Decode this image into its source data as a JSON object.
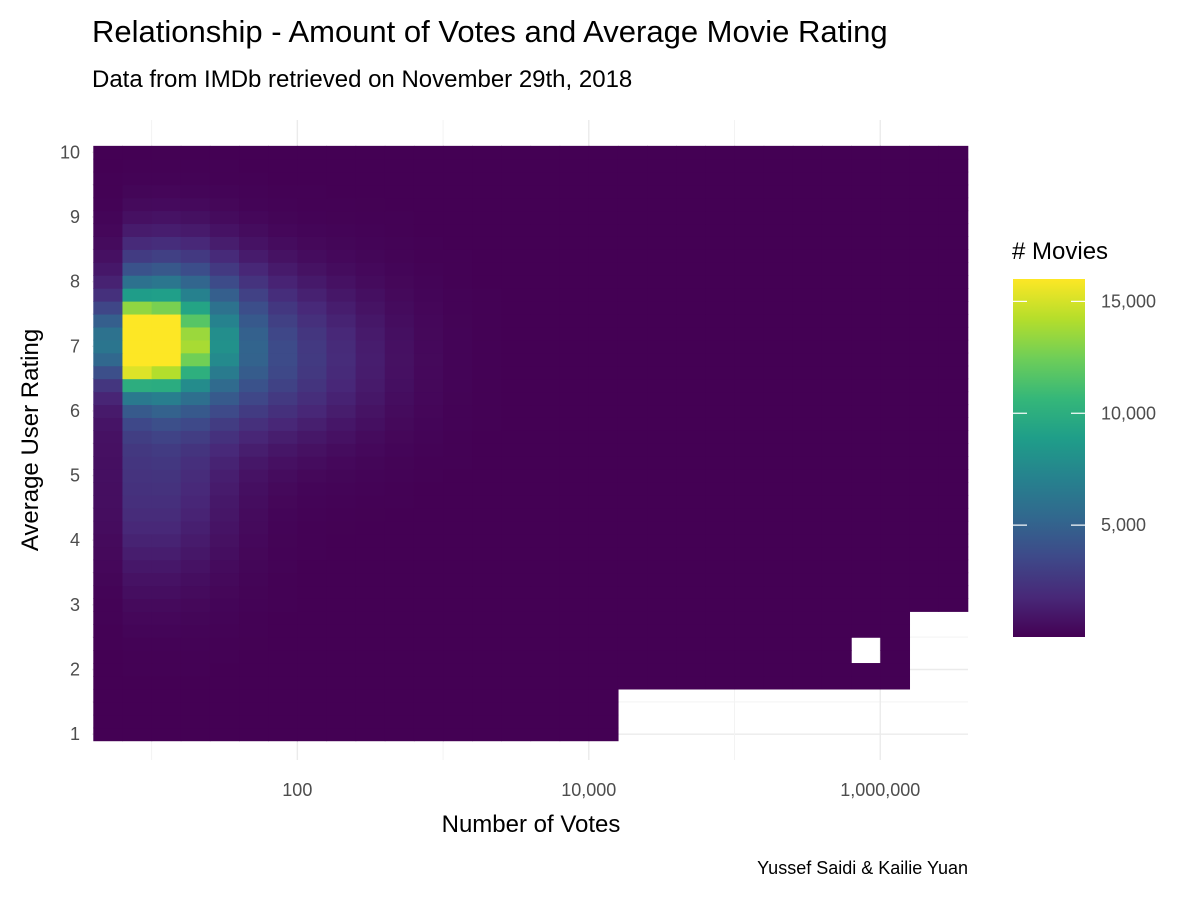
{
  "chart_data": {
    "type": "heatmap",
    "title": "Relationship - Amount of Votes and Average Movie Rating",
    "subtitle": "Data from IMDb retrieved on November 29th, 2018",
    "xlabel": "Number of Votes",
    "ylabel": "Average User Rating",
    "caption": "Yussef Saidi & Kailie Yuan",
    "x_scale": "log10",
    "xlim": [
      3.9,
      4000000
    ],
    "ylim": [
      0.6,
      10.5
    ],
    "x_ticks": [
      100,
      10000,
      1000000
    ],
    "x_tick_labels": [
      "100",
      "10,000",
      "1,000,000"
    ],
    "y_ticks": [
      1,
      2,
      3,
      4,
      5,
      6,
      7,
      8,
      9,
      10
    ],
    "y_tick_labels": [
      "1",
      "2",
      "3",
      "4",
      "5",
      "6",
      "7",
      "8",
      "9",
      "10"
    ],
    "bins": {
      "x_log_start": 0.6,
      "x_log_width": 0.2,
      "y_start": 0.9,
      "y_width": 0.2,
      "n_x": 30,
      "n_y": 46
    },
    "legend": {
      "title": "# Movies",
      "min": 0,
      "max": 16000,
      "breaks": [
        5000,
        10000,
        15000
      ],
      "break_labels": [
        "5,000",
        "10,000",
        "15,000"
      ],
      "palette": [
        "#440154",
        "#482878",
        "#3e4989",
        "#31688e",
        "#26828e",
        "#1f9e89",
        "#35b779",
        "#6ece58",
        "#b5de2b",
        "#fde725"
      ]
    },
    "grid": true,
    "legend_position": "right"
  }
}
